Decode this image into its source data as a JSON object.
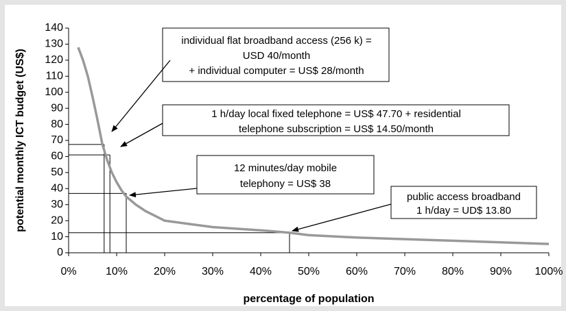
{
  "chart_data": {
    "type": "line",
    "xlabel": "percentage of population",
    "ylabel": "potential monthly ICT budget (US$)",
    "x": [
      2,
      3,
      4,
      5,
      6,
      7,
      8,
      9,
      10,
      11,
      12,
      14,
      16,
      18,
      20,
      25,
      30,
      35,
      40,
      46,
      50,
      60,
      70,
      80,
      90,
      100
    ],
    "series": [
      {
        "color": "#999999",
        "values": [
          128,
          120,
          110,
          97,
          83,
          68,
          58,
          50,
          44,
          39,
          35,
          30,
          26,
          23,
          20,
          18,
          16,
          15,
          14,
          12.5,
          11,
          9.5,
          8.5,
          7.5,
          6.5,
          5.5
        ]
      }
    ],
    "reference_lines": [
      {
        "x": 7.4,
        "y": 67.5
      },
      {
        "x": 8.6,
        "y": 61
      },
      {
        "x": 12,
        "y": 37
      },
      {
        "x": 46,
        "y": 12.5
      }
    ],
    "annotations": [
      {
        "lines": [
          "individual flat broadband access (256 k) =",
          "USD 40/month",
          "+ individual computer = US$ 28/month"
        ]
      },
      {
        "lines": [
          "1 h/day local fixed telephone = US$ 47.70 + residential",
          "telephone subscription = US$ 14.50/month"
        ]
      },
      {
        "lines": [
          "12 minutes/day mobile",
          "telephony = US$ 38"
        ]
      },
      {
        "lines": [
          "public access broadband",
          "1 h/day = UD$ 13.80"
        ]
      }
    ],
    "xlim": [
      0,
      100
    ],
    "xticks": [
      {
        "value": 0,
        "label": "0%"
      },
      {
        "value": 10,
        "label": "10%"
      },
      {
        "value": 20,
        "label": "20%"
      },
      {
        "value": 30,
        "label": "30%"
      },
      {
        "value": 40,
        "label": "40%"
      },
      {
        "value": 50,
        "label": "50%"
      },
      {
        "value": 60,
        "label": "60%"
      },
      {
        "value": 70,
        "label": "70%"
      },
      {
        "value": 80,
        "label": "80%"
      },
      {
        "value": 90,
        "label": "90%"
      },
      {
        "value": 100,
        "label": "100%"
      }
    ],
    "ylim": [
      0,
      140
    ],
    "yticks": [
      0,
      10,
      20,
      30,
      40,
      50,
      60,
      70,
      80,
      90,
      100,
      110,
      120,
      130,
      140
    ],
    "grid": false
  }
}
